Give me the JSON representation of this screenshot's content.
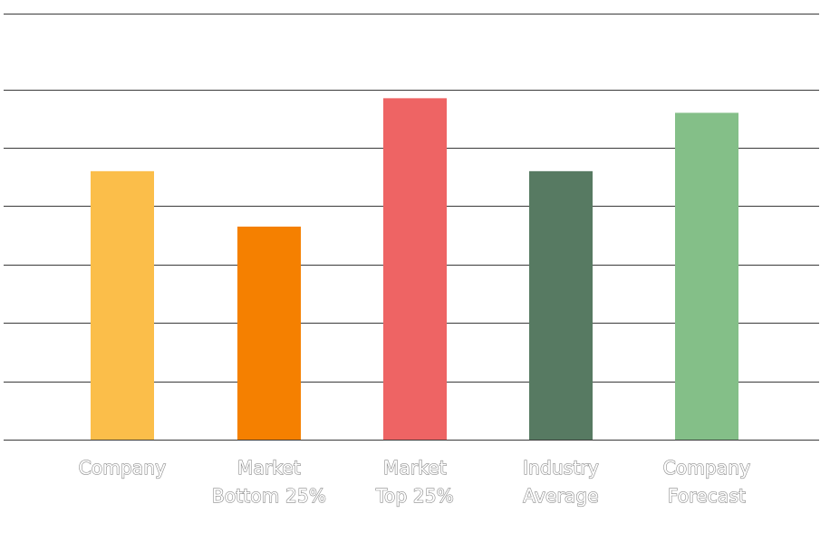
{
  "chart_data": {
    "type": "bar",
    "title": "",
    "xlabel": "",
    "ylabel": "",
    "ylim": [
      0,
      7.3
    ],
    "grid": true,
    "gridlines": [
      0,
      1,
      2,
      3,
      4,
      5,
      6,
      7.3
    ],
    "categories": [
      [
        "Company"
      ],
      [
        "Market",
        "Bottom 25%"
      ],
      [
        "Market",
        "Top 25%"
      ],
      [
        "Industry",
        "Average"
      ],
      [
        "Company",
        "Forecast"
      ]
    ],
    "values": [
      4.6,
      3.65,
      5.85,
      4.6,
      5.6
    ],
    "colors": [
      "#FBBE4A",
      "#F58000",
      "#EE6464",
      "#577A62",
      "#84BF88"
    ]
  }
}
